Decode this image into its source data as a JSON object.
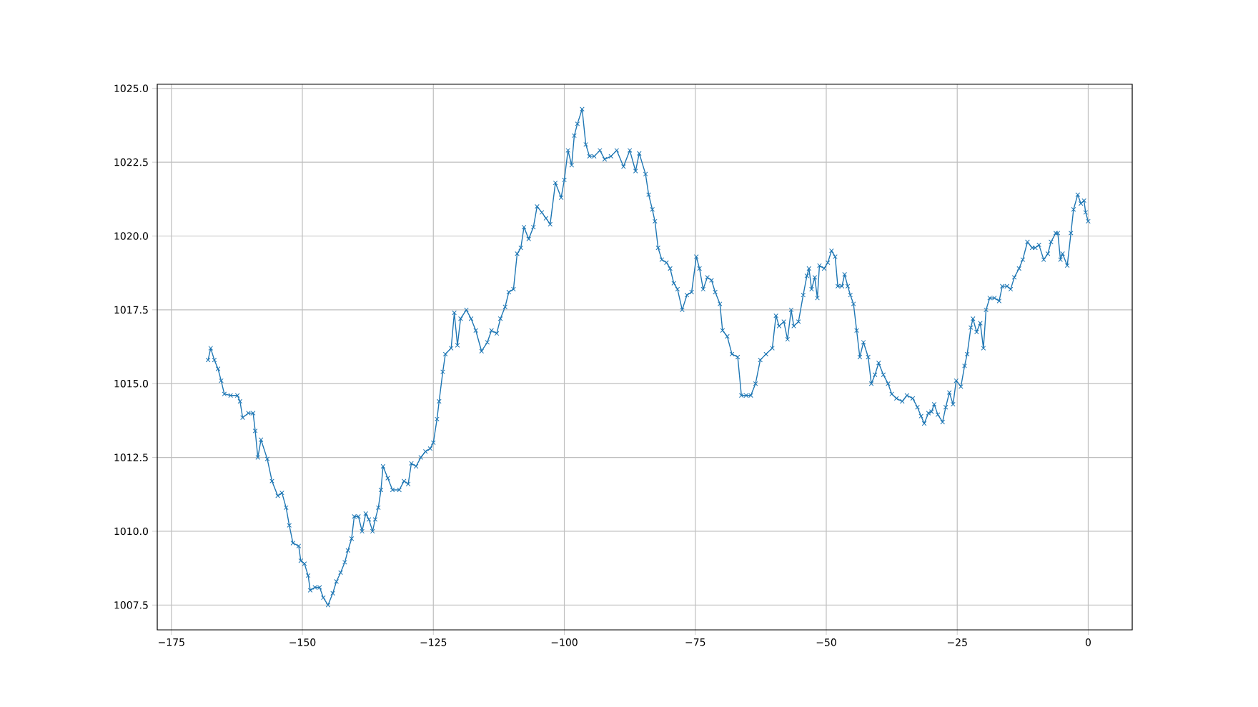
{
  "chart_data": {
    "type": "line",
    "color": "#1f77b4",
    "marker": "cross",
    "line_style": "solid",
    "grid": true,
    "xlim": [
      -177.7,
      8.4
    ],
    "ylim": [
      1006.66,
      1025.14
    ],
    "xticks": [
      {
        "value": -175,
        "label": "−175"
      },
      {
        "value": -150,
        "label": "−150"
      },
      {
        "value": -125,
        "label": "−125"
      },
      {
        "value": -100,
        "label": "−100"
      },
      {
        "value": -75,
        "label": "−75"
      },
      {
        "value": -50,
        "label": "−50"
      },
      {
        "value": -25,
        "label": "−25"
      },
      {
        "value": 0,
        "label": "0"
      }
    ],
    "yticks": [
      {
        "value": 1007.5,
        "label": "1007.5"
      },
      {
        "value": 1010,
        "label": "1010.0"
      },
      {
        "value": 1012.5,
        "label": "1012.5"
      },
      {
        "value": 1015,
        "label": "1015.0"
      },
      {
        "value": 1017.5,
        "label": "1017.5"
      },
      {
        "value": 1020,
        "label": "1020.0"
      },
      {
        "value": 1022.5,
        "label": "1022.5"
      },
      {
        "value": 1025,
        "label": "1025.0"
      }
    ],
    "x": [
      -168.0,
      -167.5,
      -166.8,
      -166.1,
      -165.5,
      -164.9,
      -163.7,
      -162.4,
      -161.9,
      -161.4,
      -160.3,
      -159.4,
      -159.0,
      -158.5,
      -157.9,
      -156.7,
      -155.8,
      -154.7,
      -153.9,
      -153.1,
      -152.5,
      -151.8,
      -150.7,
      -150.3,
      -149.6,
      -148.9,
      -148.5,
      -147.6,
      -146.7,
      -146.0,
      -145.1,
      -144.2,
      -143.5,
      -142.7,
      -141.9,
      -141.3,
      -140.6,
      -140.1,
      -139.3,
      -138.6,
      -137.9,
      -137.3,
      -136.6,
      -136.1,
      -135.5,
      -135.0,
      -134.6,
      -133.7,
      -132.8,
      -131.5,
      -130.6,
      -129.8,
      -129.2,
      -128.3,
      -127.4,
      -126.5,
      -125.6,
      -125.0,
      -124.3,
      -123.9,
      -123.2,
      -122.7,
      -121.6,
      -121.0,
      -120.4,
      -119.8,
      -118.7,
      -117.8,
      -116.9,
      -115.8,
      -114.7,
      -113.9,
      -112.9,
      -112.2,
      -111.3,
      -110.6,
      -109.7,
      -109.0,
      -108.3,
      -107.7,
      -106.8,
      -105.9,
      -105.2,
      -104.3,
      -103.5,
      -102.7,
      -101.7,
      -100.6,
      -100.0,
      -99.3,
      -98.6,
      -98.1,
      -97.5,
      -96.6,
      -95.9,
      -95.2,
      -94.3,
      -93.2,
      -92.3,
      -91.1,
      -90.0,
      -88.7,
      -87.5,
      -86.4,
      -85.7,
      -84.5,
      -83.9,
      -83.2,
      -82.7,
      -82.1,
      -81.4,
      -80.5,
      -79.8,
      -79.1,
      -78.4,
      -77.5,
      -76.6,
      -75.7,
      -74.8,
      -74.2,
      -73.5,
      -72.7,
      -71.9,
      -71.2,
      -70.3,
      -69.8,
      -68.9,
      -68.0,
      -66.9,
      -66.2,
      -65.3,
      -64.4,
      -63.5,
      -62.6,
      -61.5,
      -60.3,
      -59.6,
      -59.0,
      -58.1,
      -57.4,
      -56.7,
      -56.2,
      -55.3,
      -54.4,
      -53.7,
      -53.3,
      -52.8,
      -52.2,
      -51.7,
      -51.3,
      -50.4,
      -49.7,
      -49.0,
      -48.3,
      -47.8,
      -47.0,
      -46.5,
      -45.9,
      -45.4,
      -44.8,
      -44.2,
      -43.6,
      -42.9,
      -42.0,
      -41.4,
      -40.7,
      -40.0,
      -39.1,
      -38.2,
      -37.5,
      -36.6,
      -35.5,
      -34.6,
      -33.5,
      -32.6,
      -31.9,
      -31.3,
      -30.5,
      -29.9,
      -29.4,
      -28.7,
      -27.8,
      -27.2,
      -26.5,
      -25.8,
      -25.2,
      -24.3,
      -23.6,
      -23.1,
      -22.4,
      -22.0,
      -21.3,
      -20.6,
      -20.0,
      -19.5,
      -18.8,
      -17.9,
      -17.0,
      -16.4,
      -15.5,
      -14.8,
      -14.1,
      -13.2,
      -12.5,
      -11.6,
      -10.7,
      -10.1,
      -9.4,
      -8.5,
      -7.7,
      -7.1,
      -6.2,
      -5.8,
      -5.3,
      -4.9,
      -4.0,
      -3.3,
      -2.8,
      -2.0,
      -1.4,
      -0.8,
      -0.5,
      0.0
    ],
    "values": [
      1015.8,
      1016.2,
      1015.8,
      1015.5,
      1015.1,
      1014.65,
      1014.6,
      1014.6,
      1014.4,
      1013.85,
      1014.0,
      1014.0,
      1013.4,
      1012.5,
      1013.1,
      1012.45,
      1011.7,
      1011.2,
      1011.3,
      1010.8,
      1010.2,
      1009.6,
      1009.5,
      1009.0,
      1008.9,
      1008.5,
      1008.0,
      1008.1,
      1008.1,
      1007.75,
      1007.5,
      1007.9,
      1008.3,
      1008.6,
      1008.95,
      1009.35,
      1009.75,
      1010.5,
      1010.5,
      1010.0,
      1010.6,
      1010.4,
      1010.0,
      1010.4,
      1010.8,
      1011.4,
      1012.2,
      1011.8,
      1011.4,
      1011.4,
      1011.7,
      1011.6,
      1012.3,
      1012.2,
      1012.5,
      1012.7,
      1012.8,
      1013.0,
      1013.8,
      1014.4,
      1015.4,
      1016.0,
      1016.2,
      1017.4,
      1016.3,
      1017.2,
      1017.5,
      1017.2,
      1016.8,
      1016.1,
      1016.4,
      1016.8,
      1016.7,
      1017.2,
      1017.6,
      1018.1,
      1018.2,
      1019.4,
      1019.6,
      1020.3,
      1019.9,
      1020.3,
      1021.0,
      1020.8,
      1020.6,
      1020.4,
      1021.8,
      1021.3,
      1021.9,
      1022.9,
      1022.4,
      1023.4,
      1023.8,
      1024.3,
      1023.1,
      1022.7,
      1022.7,
      1022.9,
      1022.6,
      1022.7,
      1022.9,
      1022.35,
      1022.9,
      1022.2,
      1022.8,
      1022.1,
      1021.4,
      1020.9,
      1020.5,
      1019.6,
      1019.2,
      1019.1,
      1018.9,
      1018.4,
      1018.2,
      1017.5,
      1018.0,
      1018.1,
      1019.3,
      1018.9,
      1018.2,
      1018.6,
      1018.5,
      1018.1,
      1017.7,
      1016.8,
      1016.6,
      1016.0,
      1015.9,
      1014.6,
      1014.6,
      1014.6,
      1015.0,
      1015.8,
      1016.0,
      1016.2,
      1017.3,
      1016.95,
      1017.1,
      1016.5,
      1017.5,
      1016.95,
      1017.1,
      1018.0,
      1018.65,
      1018.9,
      1018.2,
      1018.6,
      1017.9,
      1019.0,
      1018.9,
      1019.1,
      1019.5,
      1019.3,
      1018.3,
      1018.3,
      1018.7,
      1018.3,
      1018.0,
      1017.7,
      1016.8,
      1015.9,
      1016.4,
      1015.9,
      1015.0,
      1015.3,
      1015.7,
      1015.3,
      1015.0,
      1014.65,
      1014.5,
      1014.4,
      1014.6,
      1014.5,
      1014.2,
      1013.9,
      1013.65,
      1014.0,
      1014.05,
      1014.3,
      1013.95,
      1013.7,
      1014.2,
      1014.7,
      1014.3,
      1015.1,
      1014.9,
      1015.6,
      1016.0,
      1016.9,
      1017.2,
      1016.75,
      1017.05,
      1016.2,
      1017.5,
      1017.9,
      1017.9,
      1017.8,
      1018.3,
      1018.3,
      1018.2,
      1018.6,
      1018.9,
      1019.2,
      1019.8,
      1019.6,
      1019.6,
      1019.7,
      1019.2,
      1019.4,
      1019.8,
      1020.1,
      1020.1,
      1019.2,
      1019.4,
      1019.0,
      1020.1,
      1020.9,
      1021.4,
      1021.1,
      1021.2,
      1020.8,
      1020.5
    ]
  }
}
